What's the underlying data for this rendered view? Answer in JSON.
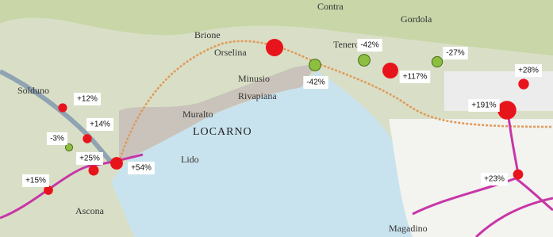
{
  "places": [
    "Orselina",
    "Brione",
    "Contra",
    "Gordola",
    "Tenero",
    "Minusio",
    "Rivapiana",
    "Muralto",
    "LOCARNO",
    "Ascona",
    "Magadino",
    "Solduno",
    "Lido"
  ],
  "markers": [
    {
      "label": "+12%",
      "value": 12,
      "color": "#e8141c"
    },
    {
      "label": "+14%",
      "value": 14,
      "color": "#e8141c"
    },
    {
      "label": "-3%",
      "value": -3,
      "color": "#8cbf3f"
    },
    {
      "label": "+25%",
      "value": 25,
      "color": "#e8141c"
    },
    {
      "label": "+54%",
      "value": 54,
      "color": "#e8141c"
    },
    {
      "label": "+15%",
      "value": 15,
      "color": "#e8141c"
    },
    {
      "label": "-42%",
      "value": -42,
      "color": "#8cbf3f"
    },
    {
      "label": "-42%",
      "value": -42,
      "color": "#8cbf3f"
    },
    {
      "label": "+117%",
      "value": 117,
      "color": "#e8141c"
    },
    {
      "label": "-27%",
      "value": -27,
      "color": "#8cbf3f"
    },
    {
      "label": "+28%",
      "value": 28,
      "color": "#e8141c"
    },
    {
      "label": "+191%",
      "value": 191,
      "color": "#e8141c"
    },
    {
      "label": "+23%",
      "value": 23,
      "color": "#e8141c"
    }
  ]
}
